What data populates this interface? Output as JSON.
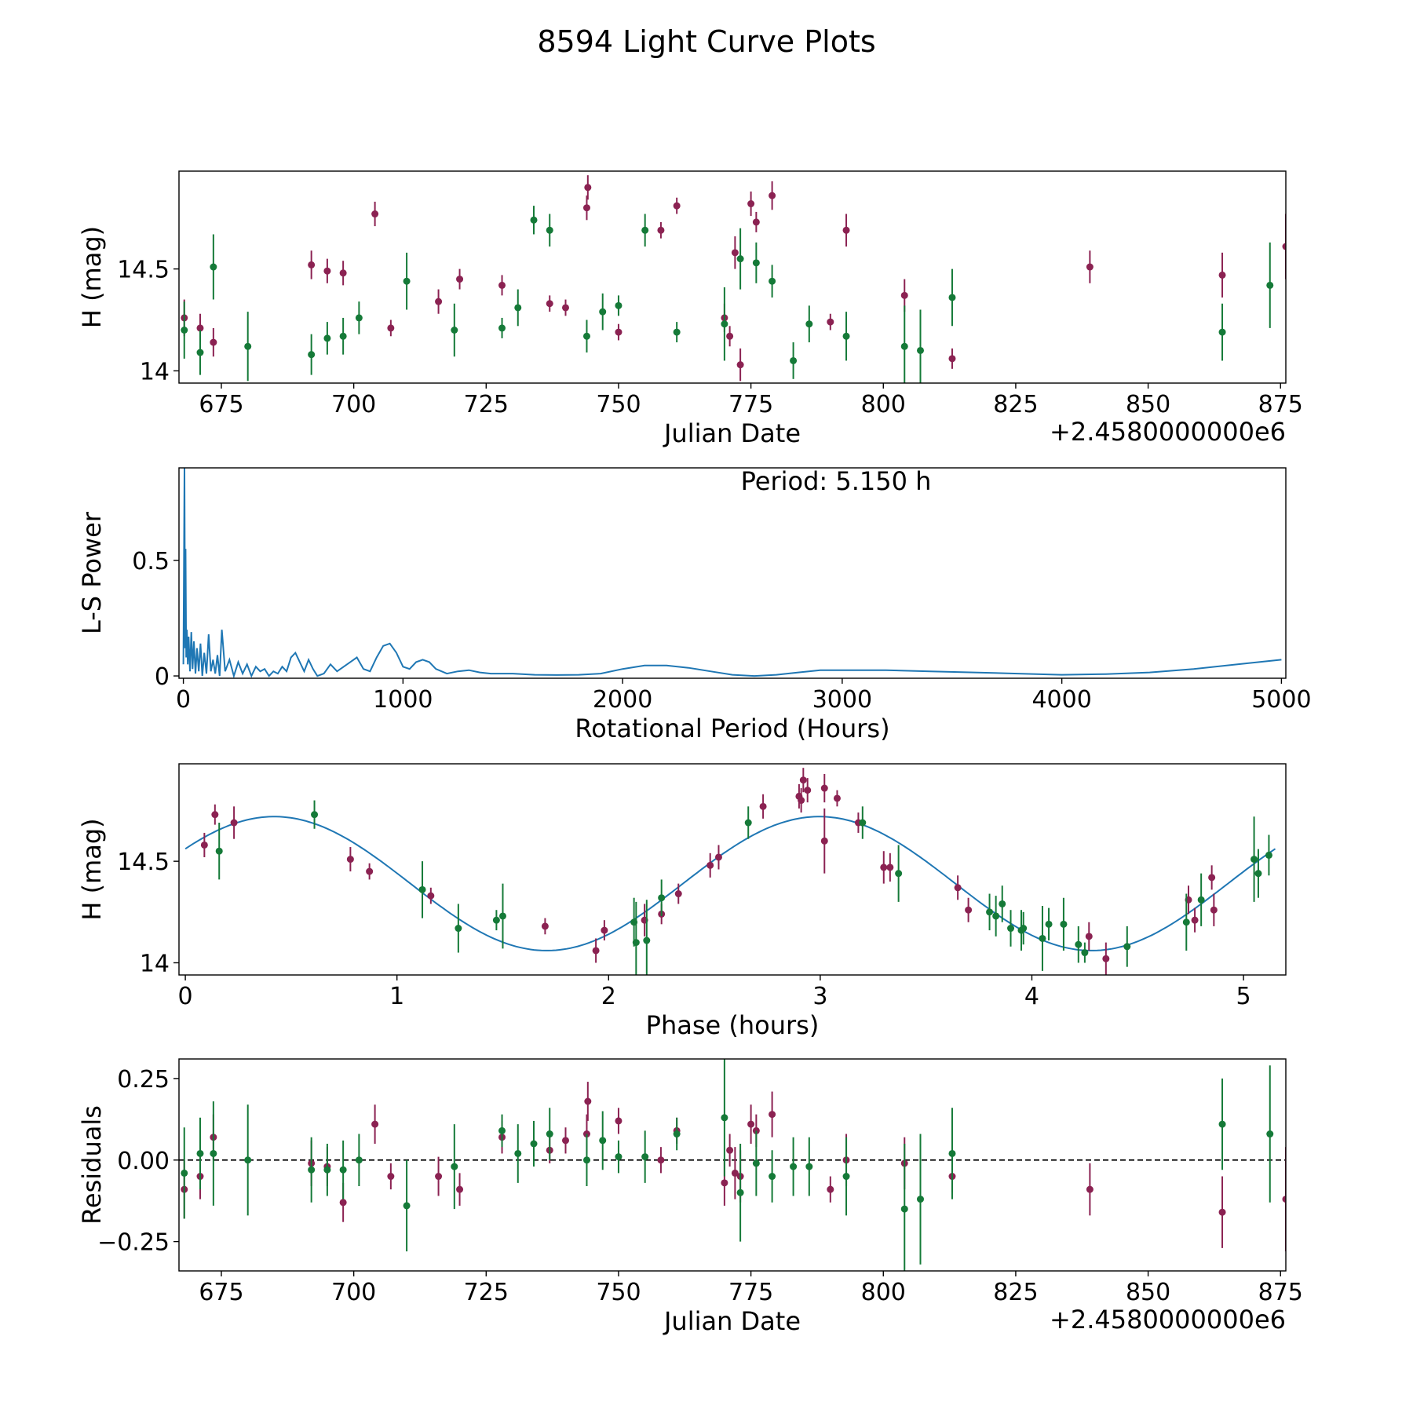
{
  "figure": {
    "title": "8594 Light Curve Plots"
  },
  "colors": {
    "maroon": "#8b2252",
    "green": "#157a38",
    "line": "#1f77b4",
    "axis": "#000000"
  },
  "chart_data": [
    {
      "type": "scatter",
      "panel": "light-curve",
      "xlabel": "Julian Date",
      "ylabel": "H (mag)",
      "offset_label": "+2.4580000000e6",
      "xlim": [
        667,
        876
      ],
      "ylim": [
        13.94,
        14.98
      ],
      "xticks": [
        675,
        700,
        725,
        750,
        775,
        800,
        825,
        850,
        875
      ],
      "yticks": [
        14.0,
        14.5
      ],
      "series": [
        {
          "name": "maroon",
          "color": "#8b2252",
          "x": [
            668,
            671,
            673.5,
            692,
            695,
            698,
            704,
            707,
            716,
            720,
            728,
            737,
            740,
            744,
            744.2,
            750,
            758,
            761,
            770,
            771,
            772,
            773,
            775,
            776,
            779,
            790,
            793,
            804,
            813,
            839,
            864,
            876
          ],
          "y": [
            14.26,
            14.21,
            14.14,
            14.52,
            14.49,
            14.48,
            14.77,
            14.21,
            14.34,
            14.45,
            14.42,
            14.33,
            14.31,
            14.8,
            14.9,
            14.19,
            14.69,
            14.81,
            14.26,
            14.17,
            14.58,
            14.03,
            14.82,
            14.73,
            14.86,
            14.24,
            14.69,
            14.37,
            14.06,
            14.51,
            14.47,
            14.61
          ],
          "err": [
            0.09,
            0.07,
            0.07,
            0.07,
            0.06,
            0.06,
            0.06,
            0.04,
            0.06,
            0.05,
            0.05,
            0.04,
            0.04,
            0.06,
            0.06,
            0.04,
            0.04,
            0.04,
            0.07,
            0.05,
            0.08,
            0.08,
            0.06,
            0.05,
            0.07,
            0.04,
            0.08,
            0.08,
            0.05,
            0.08,
            0.11,
            0.16
          ]
        },
        {
          "name": "green",
          "color": "#157a38",
          "x": [
            668,
            671,
            673.5,
            680,
            692,
            695,
            698,
            701,
            710,
            719,
            728,
            731,
            734,
            737,
            744,
            747,
            750,
            755,
            761,
            770,
            773,
            776,
            779,
            783,
            786,
            793,
            804,
            807,
            813,
            864,
            873
          ],
          "y": [
            14.2,
            14.09,
            14.51,
            14.12,
            14.08,
            14.16,
            14.17,
            14.26,
            14.44,
            14.2,
            14.21,
            14.31,
            14.74,
            14.69,
            14.17,
            14.29,
            14.32,
            14.69,
            14.19,
            14.23,
            14.55,
            14.53,
            14.44,
            14.05,
            14.23,
            14.17,
            14.12,
            14.1,
            14.36,
            14.19,
            14.42
          ],
          "err": [
            0.14,
            0.11,
            0.16,
            0.17,
            0.1,
            0.08,
            0.09,
            0.08,
            0.14,
            0.13,
            0.05,
            0.09,
            0.07,
            0.08,
            0.08,
            0.09,
            0.05,
            0.08,
            0.05,
            0.18,
            0.15,
            0.1,
            0.08,
            0.09,
            0.09,
            0.12,
            0.2,
            0.2,
            0.14,
            0.14,
            0.21
          ]
        }
      ]
    },
    {
      "type": "line",
      "panel": "periodogram",
      "xlabel": "Rotational Period (Hours)",
      "ylabel": "L-S Power",
      "annotation": "Period: 5.150 h",
      "xlim": [
        -20,
        5020
      ],
      "ylim": [
        -0.01,
        0.9
      ],
      "xticks": [
        0,
        1000,
        2000,
        3000,
        4000,
        5000
      ],
      "yticks": [
        0.0,
        0.5
      ],
      "series": [
        {
          "name": "power",
          "color": "#1f77b4",
          "x": [
            0,
            5,
            8,
            10,
            13,
            16,
            20,
            24,
            30,
            36,
            42,
            48,
            55,
            62,
            70,
            78,
            86,
            95,
            105,
            115,
            125,
            135,
            145,
            155,
            165,
            175,
            190,
            210,
            230,
            250,
            270,
            290,
            310,
            330,
            350,
            370,
            390,
            410,
            430,
            450,
            470,
            490,
            510,
            530,
            550,
            570,
            590,
            610,
            640,
            670,
            700,
            730,
            760,
            790,
            820,
            850,
            880,
            910,
            940,
            970,
            1000,
            1030,
            1060,
            1090,
            1120,
            1150,
            1200,
            1250,
            1300,
            1350,
            1400,
            1500,
            1600,
            1700,
            1800,
            1900,
            2000,
            2100,
            2200,
            2300,
            2400,
            2500,
            2600,
            2700,
            2800,
            2900,
            3000,
            3200,
            3400,
            3600,
            3800,
            4000,
            4200,
            4400,
            4600,
            4800,
            5000
          ],
          "y": [
            0.05,
            0.9,
            0.12,
            0.55,
            0.08,
            0.2,
            0.05,
            0.17,
            0.02,
            0.19,
            0.03,
            0.15,
            0.01,
            0.12,
            0.02,
            0.14,
            0.0,
            0.1,
            0.01,
            0.18,
            0.02,
            0.07,
            0.01,
            0.09,
            0.0,
            0.2,
            0.02,
            0.07,
            0.0,
            0.06,
            0.01,
            0.05,
            0.0,
            0.04,
            0.02,
            0.03,
            0.0,
            0.02,
            0.01,
            0.04,
            0.02,
            0.08,
            0.1,
            0.06,
            0.02,
            0.07,
            0.03,
            0.0,
            0.01,
            0.05,
            0.02,
            0.04,
            0.06,
            0.08,
            0.03,
            0.02,
            0.08,
            0.13,
            0.14,
            0.1,
            0.04,
            0.03,
            0.06,
            0.07,
            0.06,
            0.03,
            0.01,
            0.02,
            0.025,
            0.015,
            0.01,
            0.01,
            0.005,
            0.004,
            0.005,
            0.01,
            0.03,
            0.045,
            0.045,
            0.035,
            0.02,
            0.005,
            0.0,
            0.005,
            0.015,
            0.025,
            0.025,
            0.025,
            0.02,
            0.015,
            0.01,
            0.005,
            0.008,
            0.015,
            0.03,
            0.05,
            0.07
          ]
        }
      ]
    },
    {
      "type": "scatter",
      "panel": "phase-folded",
      "xlabel": "Phase (hours)",
      "ylabel": "H (mag)",
      "xlim": [
        -0.03,
        5.2
      ],
      "ylim": [
        13.94,
        14.98
      ],
      "xticks": [
        0,
        1,
        2,
        3,
        4,
        5
      ],
      "yticks": [
        14.0,
        14.5
      ],
      "model": {
        "mean": 14.39,
        "amplitude": 0.33,
        "period_h": 2.575,
        "peak_phase_h": 0.42,
        "color": "#1f77b4"
      },
      "series": [
        {
          "name": "maroon",
          "color": "#8b2252",
          "x": [
            0.09,
            0.14,
            0.23,
            0.78,
            0.87,
            1.16,
            1.7,
            1.94,
            1.98,
            2.17,
            2.25,
            2.33,
            2.48,
            2.52,
            2.73,
            2.9,
            2.91,
            2.92,
            2.94,
            3.02,
            3.02,
            3.08,
            3.18,
            3.3,
            3.33,
            3.65,
            3.7,
            4.27,
            4.35,
            4.74,
            4.77,
            4.85,
            4.86
          ],
          "y": [
            14.58,
            14.73,
            14.69,
            14.51,
            14.45,
            14.33,
            14.18,
            14.06,
            14.16,
            14.21,
            14.24,
            14.34,
            14.48,
            14.52,
            14.77,
            14.82,
            14.8,
            14.9,
            14.85,
            14.6,
            14.86,
            14.81,
            14.69,
            14.47,
            14.47,
            14.37,
            14.26,
            14.13,
            14.02,
            14.31,
            14.21,
            14.42,
            14.26
          ],
          "err": [
            0.06,
            0.05,
            0.08,
            0.06,
            0.04,
            0.04,
            0.04,
            0.06,
            0.05,
            0.08,
            0.05,
            0.05,
            0.06,
            0.06,
            0.06,
            0.06,
            0.06,
            0.06,
            0.06,
            0.16,
            0.07,
            0.04,
            0.05,
            0.08,
            0.07,
            0.06,
            0.06,
            0.07,
            0.08,
            0.07,
            0.06,
            0.06,
            0.08
          ]
        },
        {
          "name": "green",
          "color": "#157a38",
          "x": [
            0.16,
            0.61,
            1.12,
            1.29,
            1.47,
            1.5,
            2.12,
            2.13,
            2.18,
            2.25,
            2.66,
            3.2,
            3.37,
            3.8,
            3.83,
            3.86,
            3.9,
            3.95,
            3.96,
            4.05,
            4.08,
            4.15,
            4.22,
            4.25,
            4.45,
            4.73,
            4.8,
            5.05,
            5.07,
            5.12
          ],
          "y": [
            14.55,
            14.73,
            14.36,
            14.17,
            14.21,
            14.23,
            14.2,
            14.1,
            14.11,
            14.32,
            14.69,
            14.69,
            14.44,
            14.25,
            14.23,
            14.29,
            14.17,
            14.16,
            14.17,
            14.12,
            14.19,
            14.19,
            14.09,
            14.05,
            14.08,
            14.2,
            14.31,
            14.51,
            14.44,
            14.53
          ],
          "err": [
            0.14,
            0.07,
            0.14,
            0.12,
            0.05,
            0.16,
            0.12,
            0.2,
            0.2,
            0.09,
            0.08,
            0.08,
            0.14,
            0.09,
            0.1,
            0.09,
            0.09,
            0.1,
            0.08,
            0.16,
            0.08,
            0.13,
            0.09,
            0.05,
            0.1,
            0.14,
            0.13,
            0.21,
            0.12,
            0.1
          ]
        }
      ]
    },
    {
      "type": "scatter",
      "panel": "residuals",
      "xlabel": "Julian Date",
      "ylabel": "Residuals",
      "offset_label": "+2.4580000000e6",
      "xlim": [
        667,
        876
      ],
      "ylim": [
        -0.34,
        0.31
      ],
      "xticks": [
        675,
        700,
        725,
        750,
        775,
        800,
        825,
        850,
        875
      ],
      "yticks": [
        0.25,
        0.0,
        -0.25
      ],
      "ytick_labels": [
        "0.25",
        "0.00",
        "−0.25"
      ],
      "reference_line": 0.0,
      "series": [
        {
          "name": "maroon",
          "color": "#8b2252",
          "x": [
            668,
            671,
            673.5,
            692,
            695,
            698,
            704,
            707,
            716,
            720,
            728,
            737,
            740,
            744,
            744.2,
            750,
            758,
            761,
            770,
            771,
            772,
            773,
            775,
            776,
            779,
            790,
            793,
            804,
            813,
            839,
            864,
            876
          ],
          "y": [
            -0.09,
            -0.05,
            0.07,
            -0.01,
            -0.02,
            -0.13,
            0.11,
            -0.05,
            -0.05,
            -0.09,
            0.07,
            0.03,
            0.06,
            0.08,
            0.18,
            0.12,
            0.0,
            0.09,
            -0.07,
            0.03,
            -0.04,
            -0.05,
            0.11,
            0.09,
            0.14,
            -0.09,
            0.0,
            -0.01,
            -0.05,
            -0.09,
            -0.16,
            -0.12
          ],
          "err": [
            0.09,
            0.07,
            0.07,
            0.07,
            0.06,
            0.06,
            0.06,
            0.04,
            0.06,
            0.05,
            0.05,
            0.04,
            0.04,
            0.06,
            0.06,
            0.04,
            0.04,
            0.04,
            0.07,
            0.05,
            0.08,
            0.08,
            0.06,
            0.05,
            0.07,
            0.04,
            0.08,
            0.08,
            0.05,
            0.08,
            0.11,
            0.16
          ]
        },
        {
          "name": "green",
          "color": "#157a38",
          "x": [
            668,
            671,
            673.5,
            680,
            692,
            695,
            698,
            701,
            710,
            719,
            728,
            731,
            734,
            737,
            744,
            747,
            750,
            755,
            761,
            770,
            773,
            776,
            779,
            783,
            786,
            793,
            804,
            807,
            813,
            864,
            873
          ],
          "y": [
            -0.04,
            0.02,
            0.02,
            0.0,
            -0.03,
            -0.03,
            -0.03,
            0.0,
            -0.14,
            -0.02,
            0.09,
            0.02,
            0.05,
            0.08,
            0.0,
            0.06,
            0.01,
            0.01,
            0.08,
            0.13,
            -0.1,
            -0.01,
            -0.05,
            -0.02,
            -0.02,
            -0.05,
            -0.15,
            -0.12,
            0.02,
            0.11,
            0.08
          ],
          "err": [
            0.14,
            0.11,
            0.16,
            0.17,
            0.1,
            0.08,
            0.09,
            0.08,
            0.14,
            0.13,
            0.05,
            0.09,
            0.07,
            0.08,
            0.08,
            0.09,
            0.05,
            0.08,
            0.05,
            0.18,
            0.15,
            0.1,
            0.08,
            0.09,
            0.09,
            0.12,
            0.2,
            0.2,
            0.14,
            0.14,
            0.21
          ]
        }
      ]
    }
  ]
}
